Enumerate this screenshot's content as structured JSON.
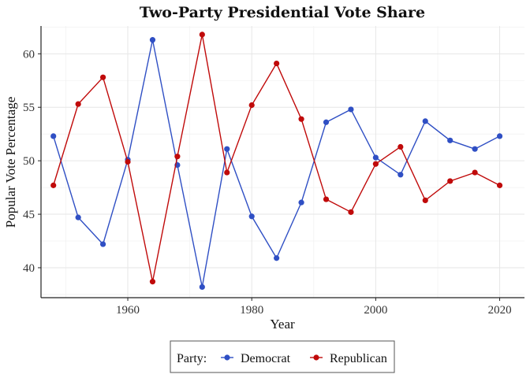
{
  "chart_data": {
    "type": "line",
    "title": "Two-Party Presidential Vote Share",
    "xlabel": "Year",
    "ylabel": "Popular Vote Percentage",
    "x": [
      1948,
      1952,
      1956,
      1960,
      1964,
      1968,
      1972,
      1976,
      1980,
      1984,
      1988,
      1992,
      1996,
      2000,
      2004,
      2008,
      2012,
      2016,
      2020
    ],
    "series": [
      {
        "name": "Democrat",
        "color": "#2f4fc4",
        "values": [
          52.3,
          44.7,
          42.2,
          50.1,
          61.3,
          49.6,
          38.2,
          51.1,
          44.8,
          40.9,
          46.1,
          53.6,
          54.8,
          50.3,
          48.7,
          53.7,
          51.9,
          51.1,
          52.3
        ]
      },
      {
        "name": "Republican",
        "color": "#c00a0a",
        "values": [
          47.7,
          55.3,
          57.8,
          49.9,
          38.7,
          50.4,
          61.8,
          48.9,
          55.2,
          59.1,
          53.9,
          46.4,
          45.2,
          49.7,
          51.3,
          46.3,
          48.1,
          48.9,
          47.7
        ]
      }
    ],
    "xlim": [
      1946,
      2024
    ],
    "ylim": [
      37.2,
      62.6
    ],
    "xticks": [
      1960,
      1980,
      2000,
      2020
    ],
    "yticks": [
      40,
      45,
      50,
      55,
      60
    ],
    "grid": true,
    "legend": {
      "title": "Party:",
      "placement": "bottom"
    }
  }
}
